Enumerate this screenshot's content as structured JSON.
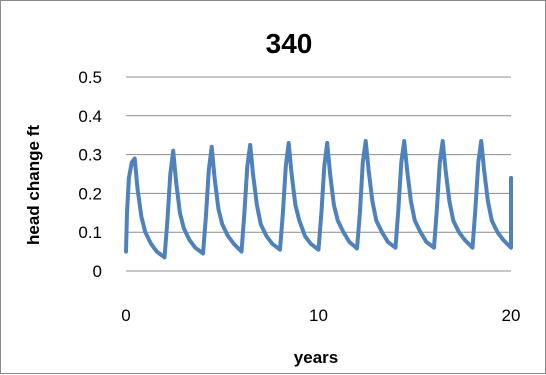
{
  "chart_data": {
    "type": "line",
    "title": "340",
    "xlabel": "years",
    "ylabel": "head change ft",
    "xlim": [
      0,
      20
    ],
    "ylim": [
      0,
      0.5
    ],
    "x_ticks": [
      "0",
      "10",
      "20"
    ],
    "y_ticks": [
      "0",
      "0.1",
      "0.2",
      "0.3",
      "0.4",
      "0.5"
    ],
    "grid": "horizontal",
    "series_color": "#4f81bd",
    "series": [
      {
        "values": [
          [
            0.0,
            0.05
          ],
          [
            0.05,
            0.15
          ],
          [
            0.15,
            0.24
          ],
          [
            0.3,
            0.28
          ],
          [
            0.45,
            0.29
          ],
          [
            0.6,
            0.21
          ],
          [
            0.8,
            0.14
          ],
          [
            1.0,
            0.1
          ],
          [
            1.3,
            0.07
          ],
          [
            1.6,
            0.05
          ],
          [
            2.0,
            0.035
          ],
          [
            2.15,
            0.13
          ],
          [
            2.3,
            0.25
          ],
          [
            2.45,
            0.31
          ],
          [
            2.6,
            0.23
          ],
          [
            2.8,
            0.15
          ],
          [
            3.0,
            0.11
          ],
          [
            3.3,
            0.08
          ],
          [
            3.6,
            0.06
          ],
          [
            4.0,
            0.045
          ],
          [
            4.15,
            0.14
          ],
          [
            4.3,
            0.26
          ],
          [
            4.45,
            0.32
          ],
          [
            4.6,
            0.24
          ],
          [
            4.8,
            0.16
          ],
          [
            5.0,
            0.12
          ],
          [
            5.3,
            0.09
          ],
          [
            5.6,
            0.07
          ],
          [
            6.0,
            0.05
          ],
          [
            6.15,
            0.15
          ],
          [
            6.3,
            0.27
          ],
          [
            6.45,
            0.325
          ],
          [
            6.6,
            0.25
          ],
          [
            6.8,
            0.17
          ],
          [
            7.0,
            0.12
          ],
          [
            7.3,
            0.09
          ],
          [
            7.6,
            0.07
          ],
          [
            8.0,
            0.055
          ],
          [
            8.15,
            0.15
          ],
          [
            8.3,
            0.27
          ],
          [
            8.45,
            0.33
          ],
          [
            8.6,
            0.25
          ],
          [
            8.8,
            0.17
          ],
          [
            9.0,
            0.13
          ],
          [
            9.3,
            0.09
          ],
          [
            9.6,
            0.07
          ],
          [
            10.0,
            0.055
          ],
          [
            10.15,
            0.15
          ],
          [
            10.3,
            0.27
          ],
          [
            10.45,
            0.33
          ],
          [
            10.6,
            0.25
          ],
          [
            10.8,
            0.17
          ],
          [
            11.0,
            0.13
          ],
          [
            11.3,
            0.1
          ],
          [
            11.6,
            0.075
          ],
          [
            12.0,
            0.058
          ],
          [
            12.15,
            0.15
          ],
          [
            12.3,
            0.28
          ],
          [
            12.45,
            0.335
          ],
          [
            12.6,
            0.26
          ],
          [
            12.8,
            0.18
          ],
          [
            13.0,
            0.13
          ],
          [
            13.3,
            0.1
          ],
          [
            13.6,
            0.075
          ],
          [
            14.0,
            0.06
          ],
          [
            14.15,
            0.16
          ],
          [
            14.3,
            0.28
          ],
          [
            14.45,
            0.335
          ],
          [
            14.6,
            0.26
          ],
          [
            14.8,
            0.18
          ],
          [
            15.0,
            0.13
          ],
          [
            15.3,
            0.1
          ],
          [
            15.6,
            0.075
          ],
          [
            16.0,
            0.06
          ],
          [
            16.15,
            0.16
          ],
          [
            16.3,
            0.28
          ],
          [
            16.45,
            0.335
          ],
          [
            16.6,
            0.26
          ],
          [
            16.8,
            0.18
          ],
          [
            17.0,
            0.13
          ],
          [
            17.3,
            0.1
          ],
          [
            17.6,
            0.08
          ],
          [
            18.0,
            0.06
          ],
          [
            18.15,
            0.16
          ],
          [
            18.3,
            0.28
          ],
          [
            18.45,
            0.335
          ],
          [
            18.6,
            0.26
          ],
          [
            18.8,
            0.18
          ],
          [
            19.0,
            0.13
          ],
          [
            19.3,
            0.1
          ],
          [
            19.6,
            0.08
          ],
          [
            20.0,
            0.06
          ],
          [
            20.0,
            0.24
          ]
        ]
      }
    ]
  }
}
